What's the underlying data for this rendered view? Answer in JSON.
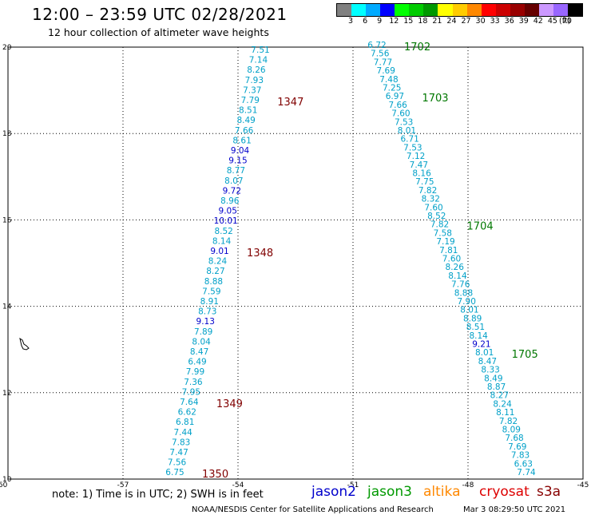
{
  "title": "12:00 – 23:59 UTC 02/28/2021",
  "subtitle": "12 hour collection of altimeter wave heights",
  "legend": {
    "colors": [
      "#808080",
      "#00ffff",
      "#00aaff",
      "#0000ff",
      "#00ff00",
      "#00cc00",
      "#009900",
      "#ffff00",
      "#ffcc00",
      "#ff8800",
      "#ff0000",
      "#cc0000",
      "#990000",
      "#660000",
      "#cc99ff",
      "#9966ff",
      "#000000"
    ],
    "labels": [
      "3",
      "6",
      "9",
      "12",
      "15",
      "18",
      "21",
      "24",
      "27",
      "30",
      "33",
      "36",
      "39",
      "42",
      "45",
      "70"
    ],
    "unit": "(ft)"
  },
  "axes": {
    "x_ticks": [
      "-60",
      "-57",
      "-54",
      "-51",
      "-48",
      "-45"
    ],
    "y_ticks": [
      "20",
      "18",
      "16",
      "14",
      "12",
      "10"
    ]
  },
  "colors": {
    "cyan": "#00a0c8",
    "blue": "#0000cc",
    "pass_red": "#800000",
    "pass_green": "#007700"
  },
  "left_track": {
    "values": [
      "7.51",
      "7.14",
      "8.26",
      "7.93",
      "7.37",
      "7.79",
      "8.51",
      "8.49",
      "7.66",
      "8.61",
      "9.04",
      "9.15",
      "8.77",
      "8.07",
      "9.72",
      "8.96",
      "9.05",
      "10.01",
      "8.52",
      "8.14",
      "9.01",
      "8.24",
      "8.27",
      "8.88",
      "7.59",
      "8.91",
      "8.73",
      "9.13",
      "7.89",
      "8.04",
      "8.47",
      "6.49",
      "7.99",
      "7.36",
      "7.95",
      "7.64",
      "6.62",
      "6.81",
      "7.44",
      "7.83",
      "7.47",
      "7.56",
      "6.75"
    ],
    "blue": [
      10,
      11,
      14,
      16,
      17,
      20,
      27
    ],
    "passes": [
      {
        "id": "1347",
        "after": 5,
        "color": "pass_red"
      },
      {
        "id": "1348",
        "after": 20,
        "color": "pass_red"
      },
      {
        "id": "1349",
        "after": 35,
        "color": "pass_red"
      },
      {
        "id": "1350",
        "after": 42,
        "color": "pass_red"
      }
    ]
  },
  "right_track": {
    "values": [
      "6.72",
      "7.56",
      "7.77",
      "7.69",
      "7.48",
      "7.25",
      "6.97",
      "7.66",
      "7.60",
      "7.53",
      "8.01",
      "6.71",
      "7.53",
      "7.12",
      "7.47",
      "8.16",
      "7.75",
      "7.82",
      "8.32",
      "7.60",
      "8.52",
      "7.82",
      "7.58",
      "7.19",
      "7.81",
      "7.60",
      "8.26",
      "8.14",
      "7.76",
      "8.88",
      "7.90",
      "8.01",
      "8.89",
      "8.51",
      "8.14",
      "9.21",
      "8.01",
      "8.47",
      "8.33",
      "8.49",
      "8.87",
      "8.27",
      "8.24",
      "8.11",
      "7.82",
      "8.09",
      "7.68",
      "7.69",
      "7.83",
      "6.63",
      "7.74"
    ],
    "blue": [
      35
    ],
    "passes": [
      {
        "id": "1702",
        "after": 0,
        "color": "pass_green"
      },
      {
        "id": "1703",
        "after": 6,
        "color": "pass_green"
      },
      {
        "id": "1704",
        "after": 21,
        "color": "pass_green"
      },
      {
        "id": "1705",
        "after": 36,
        "color": "pass_green"
      }
    ]
  },
  "note": "note: 1) Time is in UTC; 2) SWH is in feet",
  "satellites": [
    {
      "name": "jason2",
      "color": "#0000cc"
    },
    {
      "name": "jason3",
      "color": "#009900"
    },
    {
      "name": "altika",
      "color": "#ff8800"
    },
    {
      "name": "cryosat",
      "color": "#dd0000"
    },
    {
      "name": "s3a",
      "color": "#880000"
    }
  ],
  "credit": "NOAA/NESDIS Center for Satellite Applications and Research",
  "timestamp": "Mar  3 08:29:50 UTC 2021"
}
